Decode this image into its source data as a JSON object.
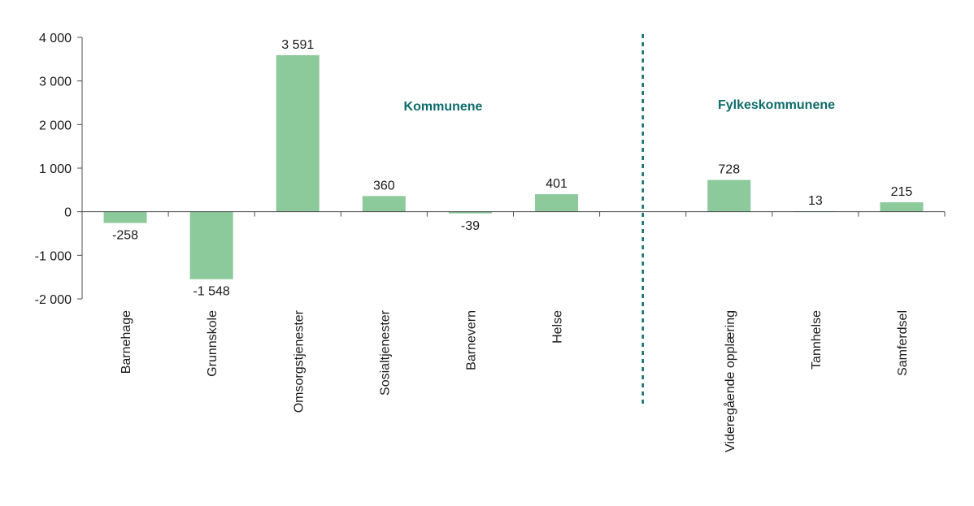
{
  "chart_data": {
    "type": "bar",
    "title": "",
    "xlabel": "",
    "ylabel": "",
    "ylim": [
      -2000,
      4000
    ],
    "yticks": [
      4000,
      3000,
      2000,
      1000,
      0,
      -1000,
      -2000
    ],
    "ytick_labels": [
      "4 000",
      "3 000",
      "2 000",
      "1 000",
      "0",
      "-1 000",
      "-2 000"
    ],
    "categories": [
      "Barnehage",
      "Grunnskole",
      "Omsorgstjenester",
      "Sosialtjenester",
      "Barnevern",
      "Helse",
      "",
      "Videregående opplæring",
      "Tannhelse",
      "Samferdsel"
    ],
    "values": [
      -258,
      -1548,
      3591,
      360,
      -39,
      401,
      null,
      728,
      13,
      215
    ],
    "value_labels": [
      "-258",
      "-1 548",
      "3 591",
      "360",
      "-39",
      "401",
      "",
      "728",
      "13",
      "215"
    ],
    "groups": [
      {
        "label": "Kommunene"
      },
      {
        "label": "Fylkeskommunene"
      }
    ],
    "grid": false,
    "colors": {
      "bar": "#8cc99b",
      "axis": "#4d4d4d",
      "group_label": "#0e6b6b",
      "separator": "#0e6b6b"
    }
  }
}
